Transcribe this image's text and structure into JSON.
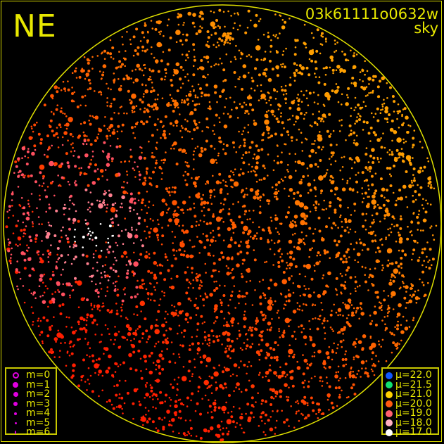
{
  "header": {
    "direction": "NE",
    "frame_id": "03k61111o0632w",
    "frame_type": "sky"
  },
  "chart_data": {
    "type": "scatter",
    "description_of_marks": "star positions within circular all-sky field; size encodes magnitude m, color encodes sky brightness mu",
    "magnitude_legend": [
      {
        "label": "m=0",
        "style": "ring",
        "color": "#e000e0"
      },
      {
        "label": "m=1",
        "style": "dot",
        "color": "#e000e0"
      },
      {
        "label": "m=2",
        "style": "dot",
        "color": "#e000e0"
      },
      {
        "label": "m=3",
        "style": "dot",
        "color": "#e000e0"
      },
      {
        "label": "m=4",
        "style": "dot",
        "color": "#e000e0"
      },
      {
        "label": "m=5",
        "style": "dot",
        "color": "#e000e0"
      },
      {
        "label": "m=6",
        "style": "dot",
        "color": "#e000e0"
      }
    ],
    "mu_legend": [
      {
        "label": "μ=22.0",
        "color": "#1058ff"
      },
      {
        "label": "μ=21.5",
        "color": "#10e070"
      },
      {
        "label": "μ=21.0",
        "color": "#ffd000"
      },
      {
        "label": "μ=20.0",
        "color": "#ff5a10"
      },
      {
        "label": "μ=19.0",
        "color": "#ff6070"
      },
      {
        "label": "μ=18.0",
        "color": "#ffb0c0"
      },
      {
        "label": "μ=17.0",
        "color": "#ffffff"
      }
    ],
    "horizon_color": "#e0e000"
  }
}
